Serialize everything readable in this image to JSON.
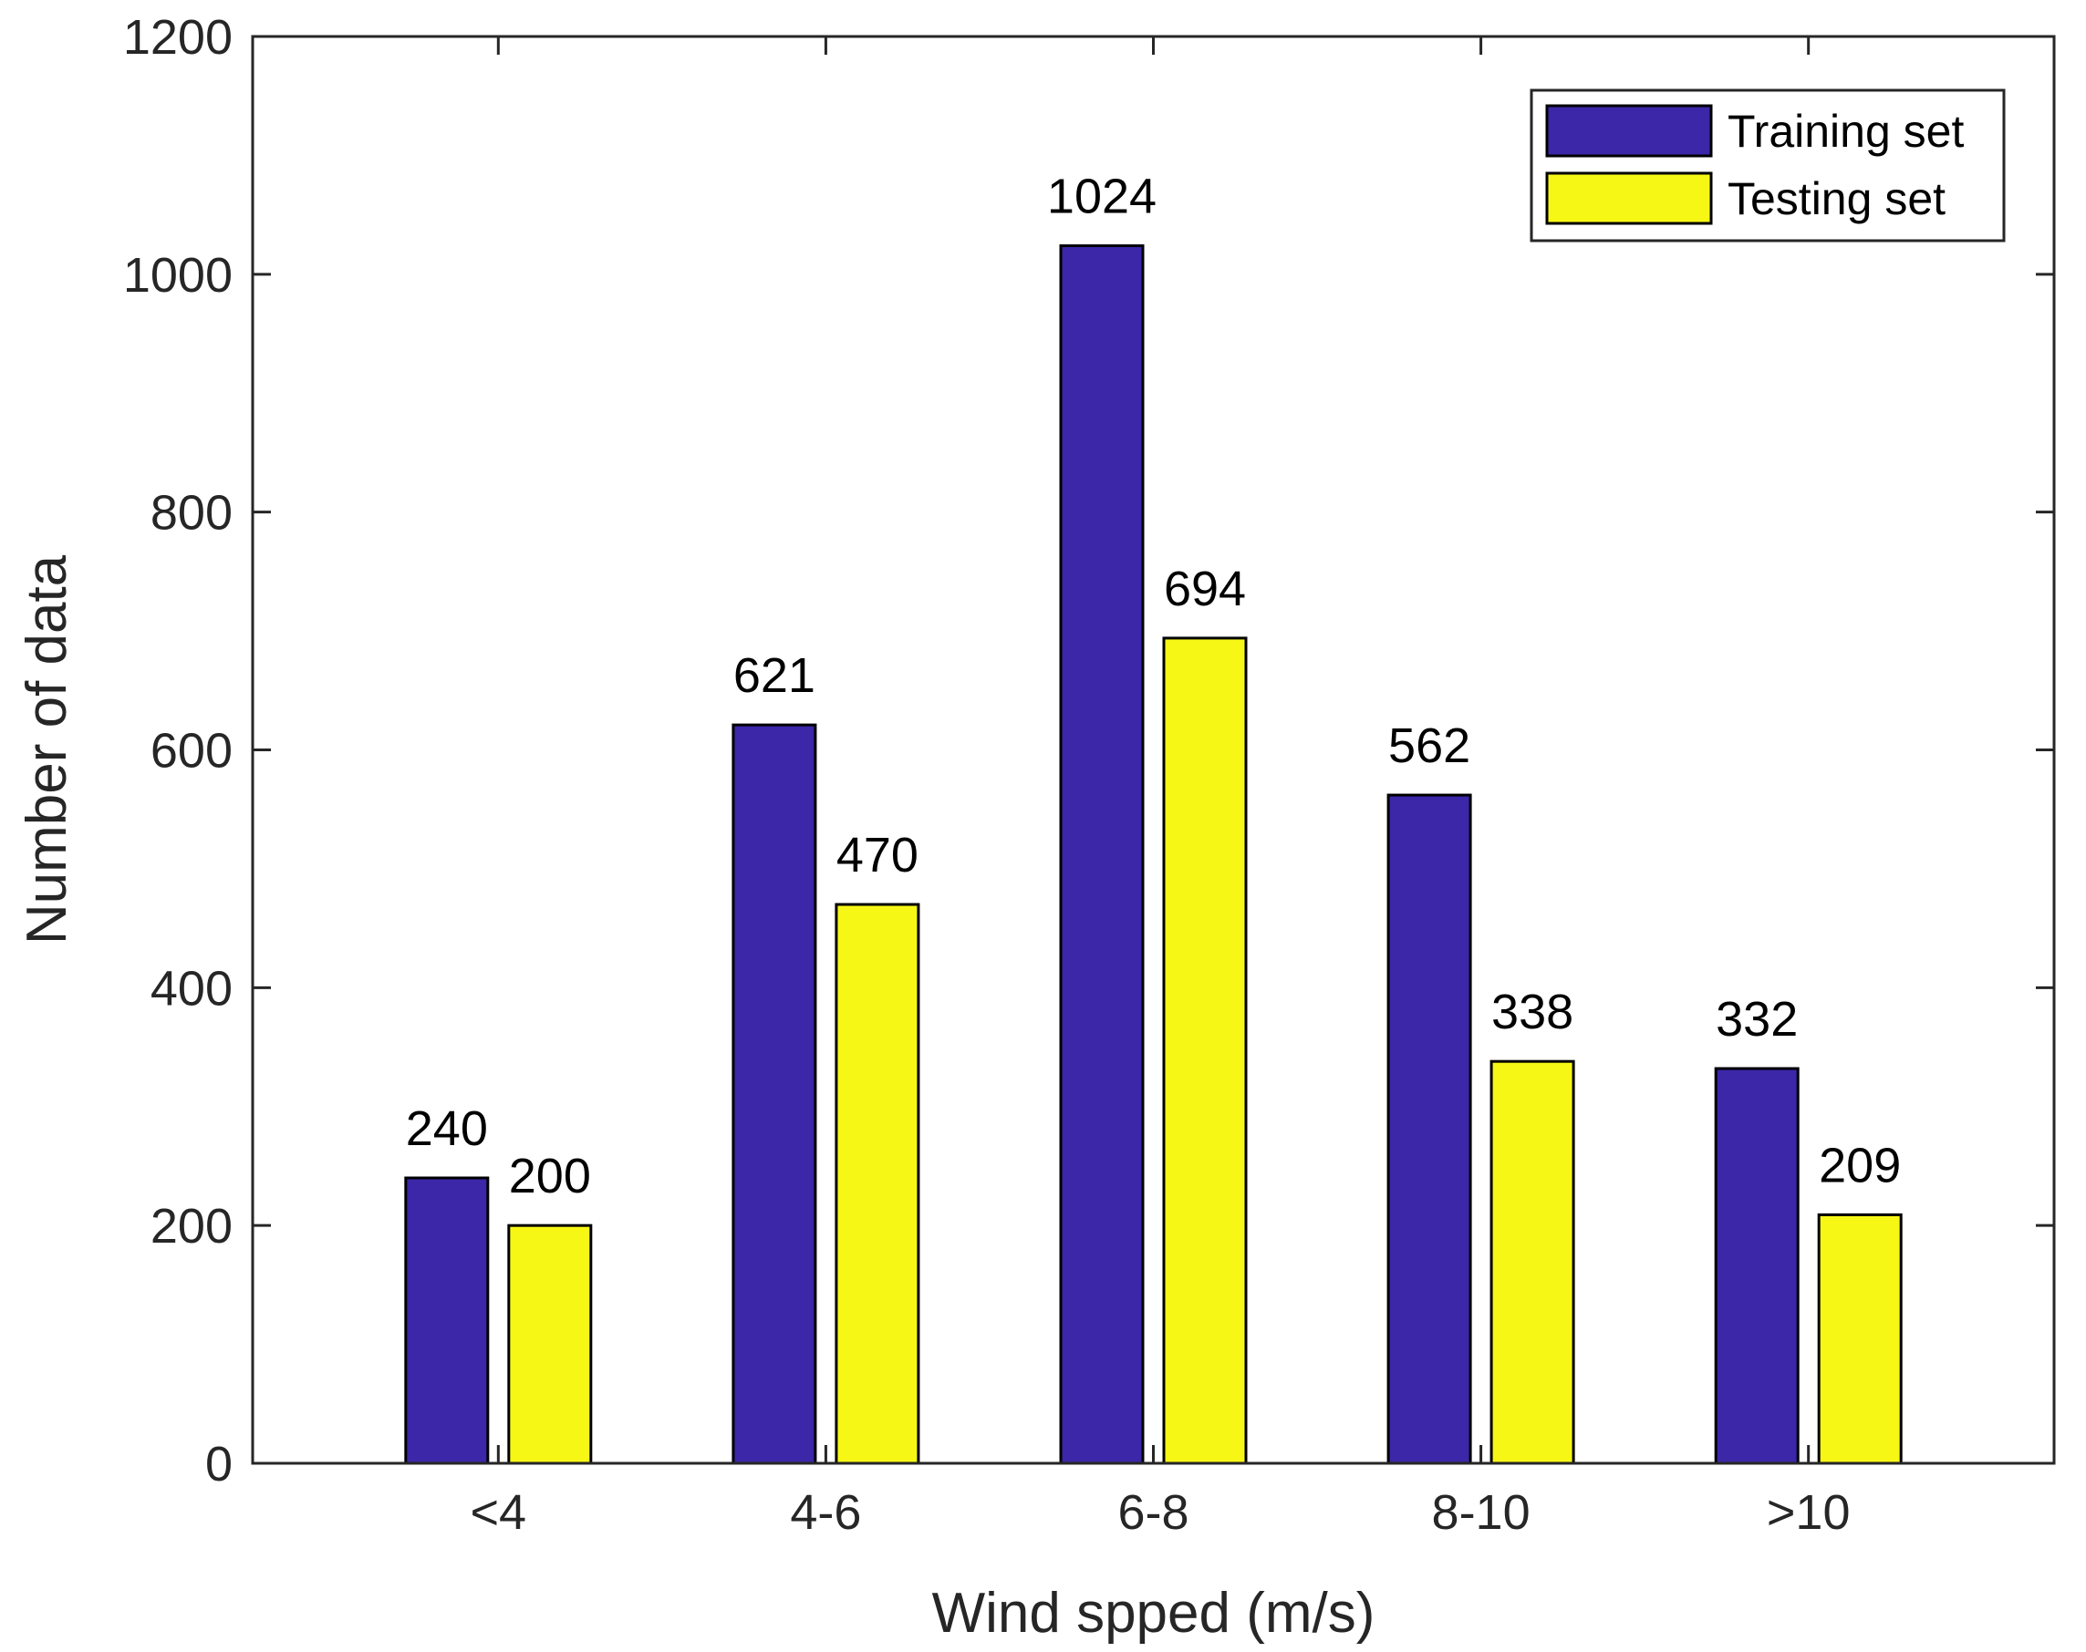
{
  "chart_data": {
    "type": "bar",
    "title": "",
    "xlabel": "Wind spped (m/s)",
    "ylabel": "Number of data",
    "ylim": [
      0,
      1200
    ],
    "yticks": [
      0,
      200,
      400,
      600,
      800,
      1000,
      1200
    ],
    "ytick_labels": [
      "0",
      "200",
      "400",
      "600",
      "800",
      "1000",
      "1200"
    ],
    "categories": [
      "<4",
      "4-6",
      "6-8",
      "8-10",
      ">10"
    ],
    "series": [
      {
        "name": "Training set",
        "color": "#3b27a7",
        "values": [
          240,
          621,
          1024,
          562,
          332
        ],
        "labels": [
          "240",
          "621",
          "1024",
          "562",
          "332"
        ]
      },
      {
        "name": "Testing set",
        "color": "#f7f716",
        "values": [
          200,
          470,
          694,
          338,
          209
        ],
        "labels": [
          "200",
          "470",
          "694",
          "338",
          "209"
        ]
      }
    ],
    "legend_position": "top-right",
    "grid": false
  }
}
